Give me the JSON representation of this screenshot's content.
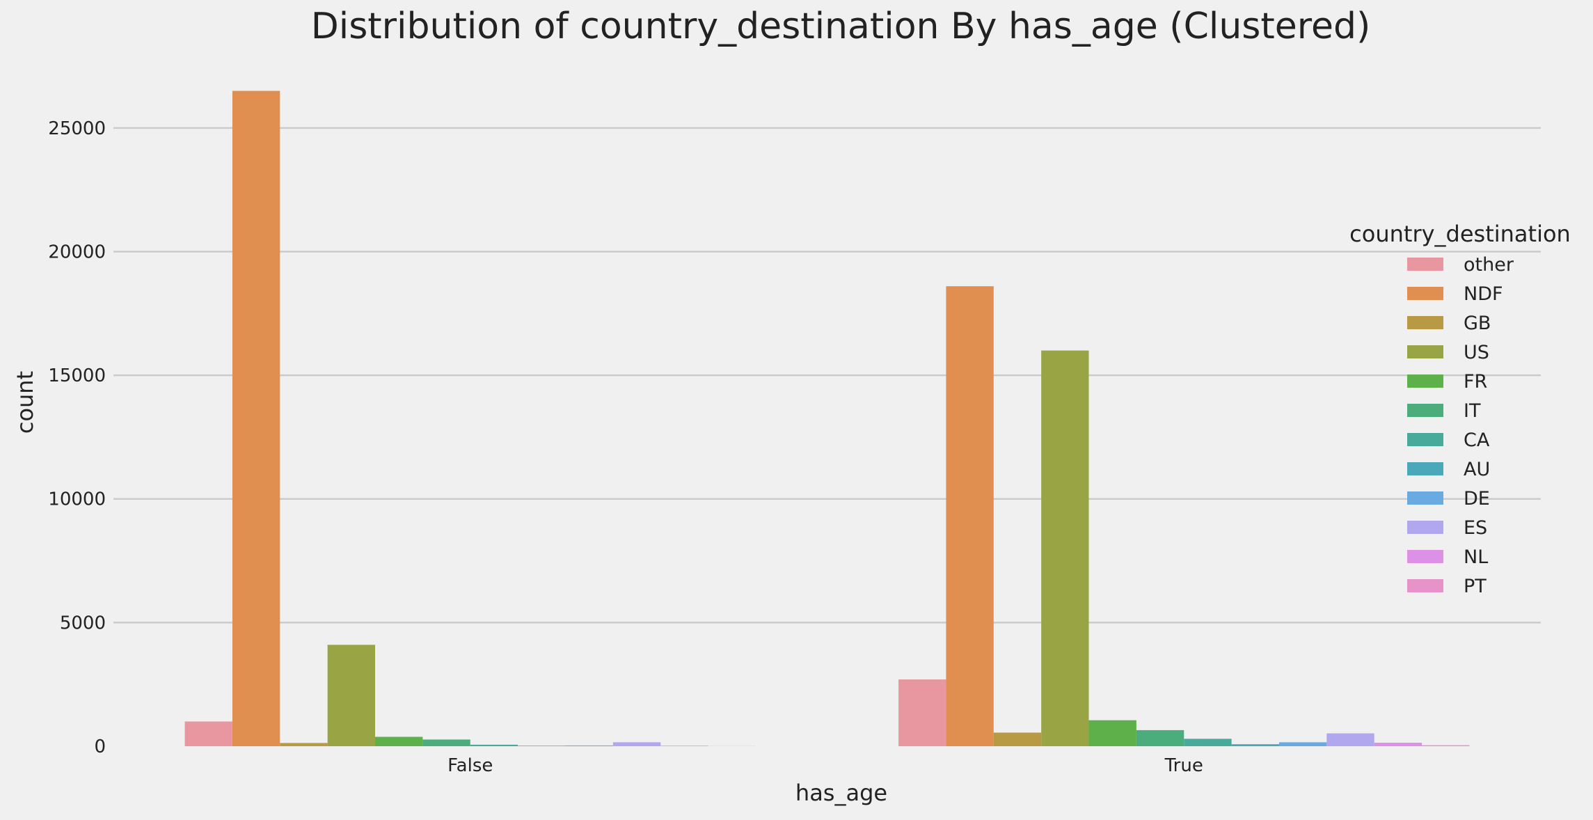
{
  "chart_data": {
    "type": "bar",
    "title": "Distribution of country_destination By has_age (Clustered)",
    "xlabel": "has_age",
    "ylabel": "count",
    "categories": [
      "False",
      "True"
    ],
    "ylim": [
      0,
      27500
    ],
    "yticks": [
      0,
      5000,
      10000,
      15000,
      20000,
      25000
    ],
    "grid": "horizontal",
    "legend": {
      "title": "country_destination",
      "placement": "right"
    },
    "series": [
      {
        "name": "other",
        "color": "#e8969f",
        "values": [
          1000,
          2700
        ]
      },
      {
        "name": "NDF",
        "color": "#e18f50",
        "values": [
          26500,
          18600
        ]
      },
      {
        "name": "GB",
        "color": "#b89a45",
        "values": [
          130,
          550
        ]
      },
      {
        "name": "US",
        "color": "#99a444",
        "values": [
          4100,
          16000
        ]
      },
      {
        "name": "FR",
        "color": "#5db04a",
        "values": [
          380,
          1050
        ]
      },
      {
        "name": "IT",
        "color": "#4bac7c",
        "values": [
          270,
          650
        ]
      },
      {
        "name": "CA",
        "color": "#48aa9b",
        "values": [
          60,
          300
        ]
      },
      {
        "name": "AU",
        "color": "#4aa8b8",
        "values": [
          20,
          80
        ]
      },
      {
        "name": "DE",
        "color": "#6aaae3",
        "values": [
          30,
          160
        ]
      },
      {
        "name": "ES",
        "color": "#b1a7ef",
        "values": [
          160,
          520
        ]
      },
      {
        "name": "NL",
        "color": "#de8fe6",
        "values": [
          20,
          140
        ]
      },
      {
        "name": "PT",
        "color": "#e793c9",
        "values": [
          5,
          40
        ]
      }
    ]
  }
}
